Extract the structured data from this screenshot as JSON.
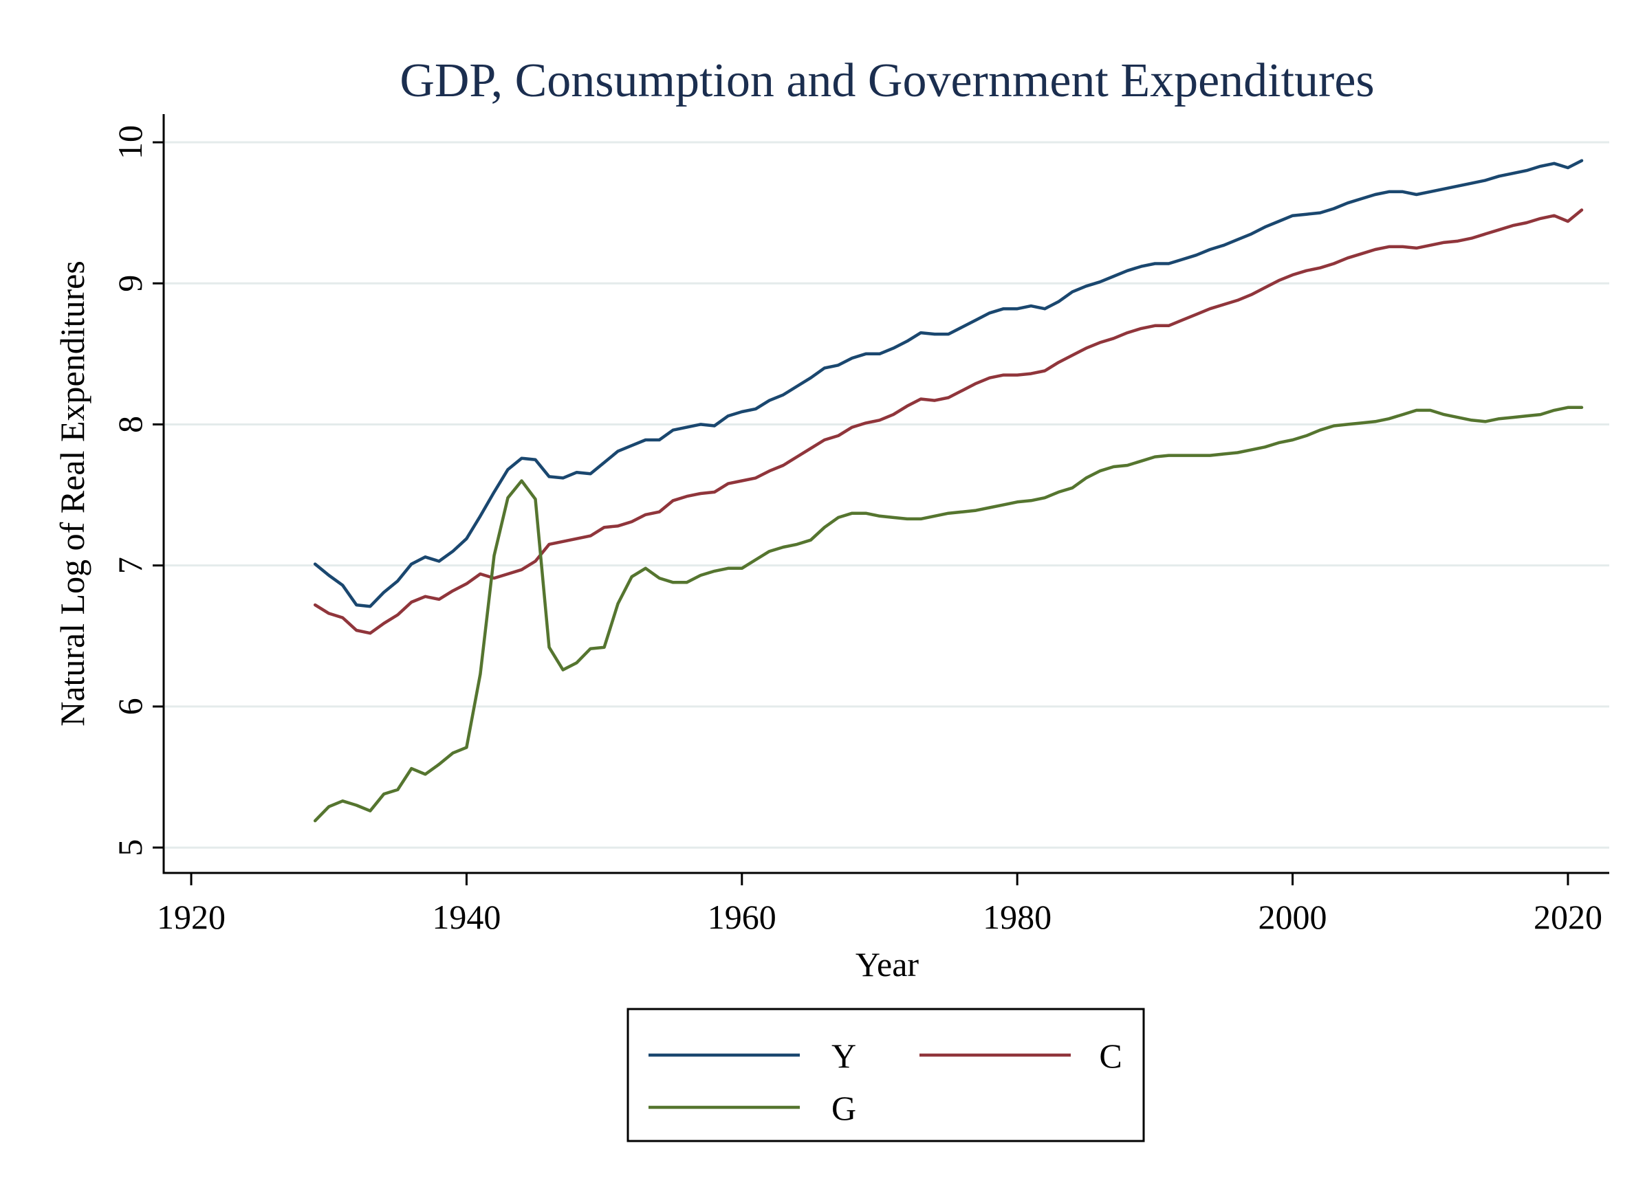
{
  "chart_data": {
    "type": "line",
    "title": "GDP, Consumption and Government Expenditures",
    "xlabel": "Year",
    "ylabel": "Natural Log of Real Expenditures",
    "xlim": [
      1918,
      2023
    ],
    "ylim": [
      4.82,
      10.2
    ],
    "xticks": [
      "1920",
      "1940",
      "1960",
      "1980",
      "2000",
      "2020"
    ],
    "yticks": [
      "5",
      "6",
      "7",
      "8",
      "9",
      "10"
    ],
    "grid": true,
    "legend_position": "bottom",
    "series": [
      {
        "name": "Y",
        "color": "#1a476f",
        "x": [
          1929,
          1930,
          1931,
          1932,
          1933,
          1934,
          1935,
          1936,
          1937,
          1938,
          1939,
          1940,
          1941,
          1942,
          1943,
          1944,
          1945,
          1946,
          1947,
          1948,
          1949,
          1950,
          1951,
          1952,
          1953,
          1954,
          1955,
          1956,
          1957,
          1958,
          1959,
          1960,
          1961,
          1962,
          1963,
          1964,
          1965,
          1966,
          1967,
          1968,
          1969,
          1970,
          1971,
          1972,
          1973,
          1974,
          1975,
          1976,
          1977,
          1978,
          1979,
          1980,
          1981,
          1982,
          1983,
          1984,
          1985,
          1986,
          1987,
          1988,
          1989,
          1990,
          1991,
          1992,
          1993,
          1994,
          1995,
          1996,
          1997,
          1998,
          1999,
          2000,
          2001,
          2002,
          2003,
          2004,
          2005,
          2006,
          2007,
          2008,
          2009,
          2010,
          2011,
          2012,
          2013,
          2014,
          2015,
          2016,
          2017,
          2018,
          2019,
          2020,
          2021
        ],
        "values": [
          7.01,
          6.93,
          6.86,
          6.72,
          6.71,
          6.81,
          6.89,
          7.01,
          7.06,
          7.03,
          7.1,
          7.19,
          7.35,
          7.52,
          7.68,
          7.76,
          7.75,
          7.63,
          7.62,
          7.66,
          7.65,
          7.73,
          7.81,
          7.85,
          7.89,
          7.89,
          7.96,
          7.98,
          8.0,
          7.99,
          8.06,
          8.09,
          8.11,
          8.17,
          8.21,
          8.27,
          8.33,
          8.4,
          8.42,
          8.47,
          8.5,
          8.5,
          8.54,
          8.59,
          8.65,
          8.64,
          8.64,
          8.69,
          8.74,
          8.79,
          8.82,
          8.82,
          8.84,
          8.82,
          8.87,
          8.94,
          8.98,
          9.01,
          9.05,
          9.09,
          9.12,
          9.14,
          9.14,
          9.17,
          9.2,
          9.24,
          9.27,
          9.31,
          9.35,
          9.4,
          9.44,
          9.48,
          9.49,
          9.5,
          9.53,
          9.57,
          9.6,
          9.63,
          9.65,
          9.65,
          9.63,
          9.65,
          9.67,
          9.69,
          9.71,
          9.73,
          9.76,
          9.78,
          9.8,
          9.83,
          9.85,
          9.82,
          9.87
        ]
      },
      {
        "name": "C",
        "color": "#90353b",
        "x": [
          1929,
          1930,
          1931,
          1932,
          1933,
          1934,
          1935,
          1936,
          1937,
          1938,
          1939,
          1940,
          1941,
          1942,
          1943,
          1944,
          1945,
          1946,
          1947,
          1948,
          1949,
          1950,
          1951,
          1952,
          1953,
          1954,
          1955,
          1956,
          1957,
          1958,
          1959,
          1960,
          1961,
          1962,
          1963,
          1964,
          1965,
          1966,
          1967,
          1968,
          1969,
          1970,
          1971,
          1972,
          1973,
          1974,
          1975,
          1976,
          1977,
          1978,
          1979,
          1980,
          1981,
          1982,
          1983,
          1984,
          1985,
          1986,
          1987,
          1988,
          1989,
          1990,
          1991,
          1992,
          1993,
          1994,
          1995,
          1996,
          1997,
          1998,
          1999,
          2000,
          2001,
          2002,
          2003,
          2004,
          2005,
          2006,
          2007,
          2008,
          2009,
          2010,
          2011,
          2012,
          2013,
          2014,
          2015,
          2016,
          2017,
          2018,
          2019,
          2020,
          2021
        ],
        "values": [
          6.72,
          6.66,
          6.63,
          6.54,
          6.52,
          6.59,
          6.65,
          6.74,
          6.78,
          6.76,
          6.82,
          6.87,
          6.94,
          6.91,
          6.94,
          6.97,
          7.03,
          7.15,
          7.17,
          7.19,
          7.21,
          7.27,
          7.28,
          7.31,
          7.36,
          7.38,
          7.46,
          7.49,
          7.51,
          7.52,
          7.58,
          7.6,
          7.62,
          7.67,
          7.71,
          7.77,
          7.83,
          7.89,
          7.92,
          7.98,
          8.01,
          8.03,
          8.07,
          8.13,
          8.18,
          8.17,
          8.19,
          8.24,
          8.29,
          8.33,
          8.35,
          8.35,
          8.36,
          8.38,
          8.44,
          8.49,
          8.54,
          8.58,
          8.61,
          8.65,
          8.68,
          8.7,
          8.7,
          8.74,
          8.78,
          8.82,
          8.85,
          8.88,
          8.92,
          8.97,
          9.02,
          9.06,
          9.09,
          9.11,
          9.14,
          9.18,
          9.21,
          9.24,
          9.26,
          9.26,
          9.25,
          9.27,
          9.29,
          9.3,
          9.32,
          9.35,
          9.38,
          9.41,
          9.43,
          9.46,
          9.48,
          9.44,
          9.52
        ]
      },
      {
        "name": "G",
        "color": "#55752f",
        "x": [
          1929,
          1930,
          1931,
          1932,
          1933,
          1934,
          1935,
          1936,
          1937,
          1938,
          1939,
          1940,
          1941,
          1942,
          1943,
          1944,
          1945,
          1946,
          1947,
          1948,
          1949,
          1950,
          1951,
          1952,
          1953,
          1954,
          1955,
          1956,
          1957,
          1958,
          1959,
          1960,
          1961,
          1962,
          1963,
          1964,
          1965,
          1966,
          1967,
          1968,
          1969,
          1970,
          1971,
          1972,
          1973,
          1974,
          1975,
          1976,
          1977,
          1978,
          1979,
          1980,
          1981,
          1982,
          1983,
          1984,
          1985,
          1986,
          1987,
          1988,
          1989,
          1990,
          1991,
          1992,
          1993,
          1994,
          1995,
          1996,
          1997,
          1998,
          1999,
          2000,
          2001,
          2002,
          2003,
          2004,
          2005,
          2006,
          2007,
          2008,
          2009,
          2010,
          2011,
          2012,
          2013,
          2014,
          2015,
          2016,
          2017,
          2018,
          2019,
          2020,
          2021
        ],
        "values": [
          5.19,
          5.29,
          5.33,
          5.3,
          5.26,
          5.38,
          5.41,
          5.56,
          5.52,
          5.59,
          5.67,
          5.71,
          6.23,
          7.07,
          7.48,
          7.6,
          7.47,
          6.42,
          6.26,
          6.31,
          6.41,
          6.42,
          6.73,
          6.92,
          6.98,
          6.91,
          6.88,
          6.88,
          6.93,
          6.96,
          6.98,
          6.98,
          7.04,
          7.1,
          7.13,
          7.15,
          7.18,
          7.27,
          7.34,
          7.37,
          7.37,
          7.35,
          7.34,
          7.33,
          7.33,
          7.35,
          7.37,
          7.38,
          7.39,
          7.41,
          7.43,
          7.45,
          7.46,
          7.48,
          7.52,
          7.55,
          7.62,
          7.67,
          7.7,
          7.71,
          7.74,
          7.77,
          7.78,
          7.78,
          7.78,
          7.78,
          7.79,
          7.8,
          7.82,
          7.84,
          7.87,
          7.89,
          7.92,
          7.96,
          7.99,
          8.0,
          8.01,
          8.02,
          8.04,
          8.07,
          8.1,
          8.1,
          8.07,
          8.05,
          8.03,
          8.02,
          8.04,
          8.05,
          8.06,
          8.07,
          8.1,
          8.12,
          8.12
        ]
      }
    ]
  }
}
